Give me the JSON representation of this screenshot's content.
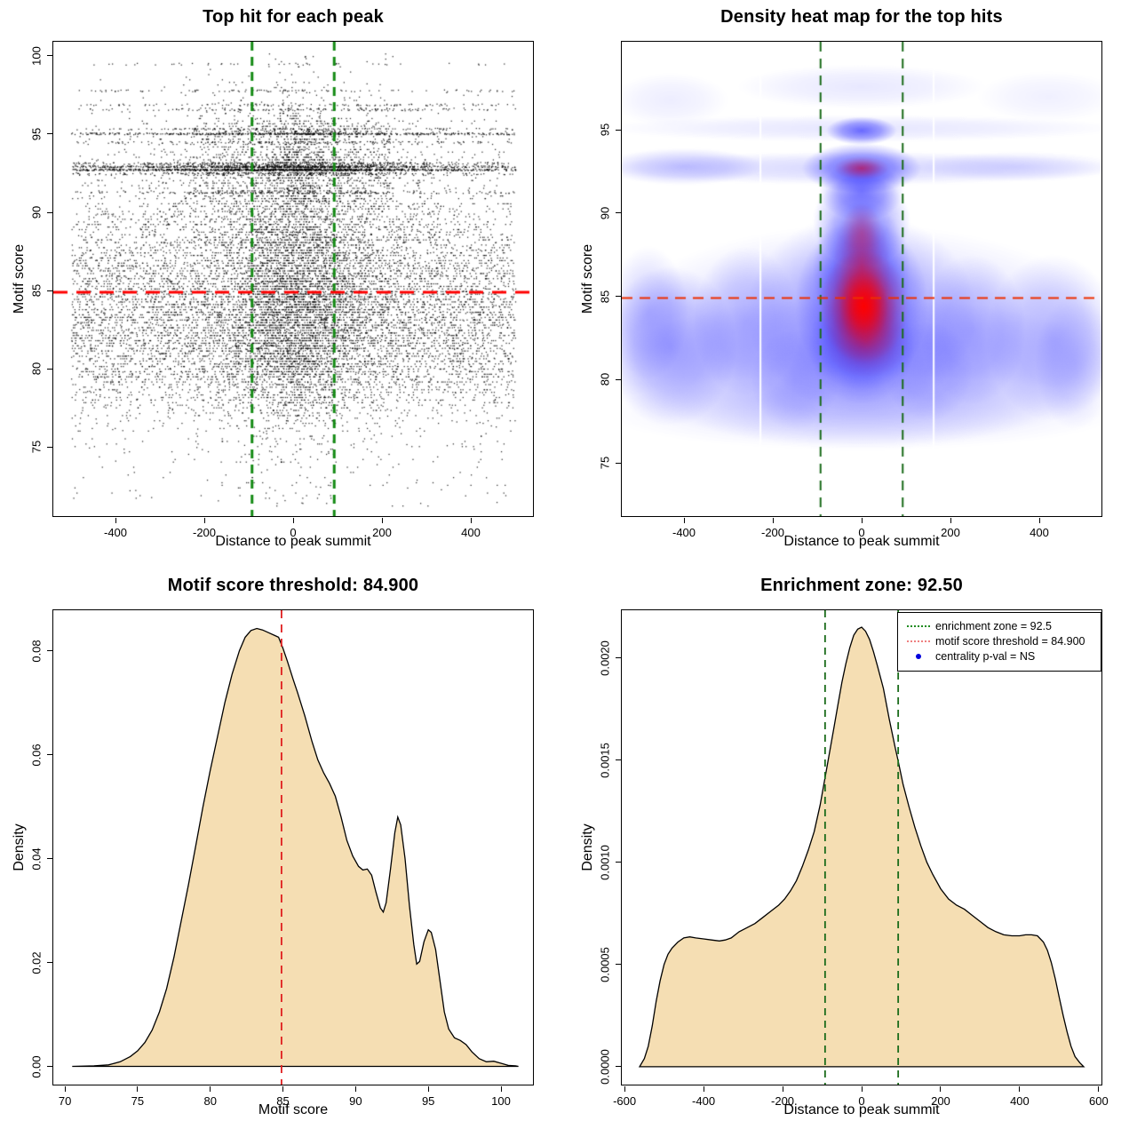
{
  "figure_background": "#ffffff",
  "chart_data": [
    {
      "type": "scatter",
      "title": "Top hit for each peak",
      "xlabel": "Distance to peak summit",
      "ylabel": "Motif score",
      "xlim": [
        -540,
        540
      ],
      "ylim": [
        70.6,
        100.9
      ],
      "x_tick_values": [
        -400,
        -200,
        0,
        200,
        400
      ],
      "x_tick_labels": [
        "-400",
        "-200",
        "0",
        "200",
        "400"
      ],
      "y_tick_values": [
        75,
        80,
        85,
        90,
        95,
        100
      ],
      "y_tick_labels": [
        "75",
        "80",
        "85",
        "90",
        "95",
        "100"
      ],
      "point_color": "#000000",
      "threshold_line": {
        "y": 84.9,
        "color": "#ff0000",
        "width": 3,
        "dash": [
          16,
          10
        ]
      },
      "zone_lines": {
        "x": [
          -92.5,
          92.5
        ],
        "color": "#148a14",
        "width": 3,
        "dash": [
          10,
          7
        ]
      },
      "points": {
        "n": 15000,
        "seed": 20240613,
        "x_data_range": [
          -500,
          500
        ],
        "outlier_frac": 0.012,
        "quantize_step": 0.165,
        "quantize_frac": 0.8,
        "funnel": {
          "y_above": 90.6,
          "shrink": 0.45,
          "frac": 0.55,
          "y_mid": 88,
          "shrink_mid": 0.7,
          "frac_mid": 0.3
        },
        "bands": [
          {
            "y": 92.75,
            "n": 1000
          },
          {
            "y": 92.95,
            "n": 700
          },
          {
            "y": 95.05,
            "n": 500
          },
          {
            "y": 93.15,
            "n": 260
          },
          {
            "y": 92.5,
            "n": 220
          },
          {
            "y": 94.5,
            "n": 150
          },
          {
            "y": 95.35,
            "n": 120
          },
          {
            "y": 96.6,
            "n": 130
          },
          {
            "y": 96.9,
            "n": 110
          },
          {
            "y": 97.8,
            "n": 90
          },
          {
            "y": 91.3,
            "n": 180
          },
          {
            "y": 99.5,
            "n": 40
          }
        ]
      }
    },
    {
      "type": "heatmap",
      "title": "Density heat map for the top hits",
      "xlabel": "Distance to peak summit",
      "ylabel": "Motif score",
      "xlim": [
        -540,
        540
      ],
      "ylim": [
        71.8,
        100.3
      ],
      "x_tick_values": [
        -400,
        -200,
        0,
        200,
        400
      ],
      "x_tick_labels": [
        "-400",
        "-200",
        "0",
        "200",
        "400"
      ],
      "y_tick_values": [
        75,
        80,
        85,
        90,
        95
      ],
      "y_tick_labels": [
        "75",
        "80",
        "85",
        "90",
        "95"
      ],
      "colormap": [
        "#ffffff",
        "#0000ff",
        "#ff0000"
      ],
      "hotspot": {
        "x": 0,
        "y": 84.5
      },
      "threshold_line": {
        "y": 84.9,
        "color": "#ee2f00",
        "width": 2,
        "dash": [
          12,
          8
        ]
      },
      "zone_lines": {
        "x": [
          -92.5,
          92.5
        ],
        "color": "#1a6b1a",
        "width": 2,
        "dash": [
          11,
          8
        ]
      },
      "artifact_lines_x": [
        -228,
        162
      ],
      "blue_blobs": [
        [
          0,
          82.5,
          580,
          6.8,
          0.2
        ],
        [
          0,
          80.5,
          580,
          4.5,
          0.18
        ],
        [
          -430,
          82,
          150,
          4.8,
          0.3
        ],
        [
          -480,
          84,
          90,
          4,
          0.18
        ],
        [
          430,
          82.5,
          150,
          5,
          0.24
        ],
        [
          480,
          81,
          90,
          4,
          0.15
        ],
        [
          -260,
          83.5,
          120,
          4.5,
          0.22
        ],
        [
          250,
          83,
          120,
          4.5,
          0.22
        ],
        [
          0,
          84,
          260,
          6,
          0.3
        ],
        [
          0,
          84.5,
          150,
          5.2,
          0.42
        ],
        [
          0,
          86.5,
          110,
          4.2,
          0.35
        ],
        [
          0,
          89.5,
          110,
          2.8,
          0.4
        ],
        [
          0,
          91.3,
          95,
          1.8,
          0.42
        ],
        [
          0,
          92.7,
          580,
          1.0,
          0.16
        ],
        [
          -400,
          92.8,
          180,
          1.1,
          0.22
        ],
        [
          350,
          92.8,
          230,
          0.9,
          0.12
        ],
        [
          0,
          92.7,
          135,
          1.5,
          0.55
        ],
        [
          0,
          94.95,
          80,
          0.85,
          0.55
        ],
        [
          0,
          95.1,
          580,
          0.8,
          0.1
        ],
        [
          0,
          97.6,
          280,
          1.3,
          0.09
        ],
        [
          -430,
          96.8,
          130,
          1.6,
          0.07
        ],
        [
          420,
          97,
          160,
          1.5,
          0.06
        ],
        [
          0,
          78,
          580,
          2.2,
          0.1
        ],
        [
          -150,
          80,
          100,
          3,
          0.15
        ],
        [
          150,
          80.5,
          100,
          3,
          0.15
        ],
        [
          0,
          82,
          120,
          3.5,
          0.3
        ]
      ],
      "red_blobs": [
        [
          5,
          84.4,
          100,
          3.4,
          0.9
        ],
        [
          5,
          84.4,
          55,
          2.2,
          0.85
        ],
        [
          0,
          86.8,
          65,
          3.8,
          0.4
        ],
        [
          10,
          82.3,
          95,
          2.2,
          0.35
        ],
        [
          0,
          88.8,
          45,
          1.8,
          0.22
        ],
        [
          0,
          92.7,
          62,
          0.72,
          0.5
        ]
      ]
    },
    {
      "type": "area",
      "title": "Motif score threshold: 84.900",
      "xlabel": "Motif score",
      "ylabel": "Density",
      "xlim": [
        69.2,
        102.2
      ],
      "ylim": [
        -0.0035,
        0.0878
      ],
      "x_tick_values": [
        70,
        75,
        80,
        85,
        90,
        95,
        100
      ],
      "x_tick_labels": [
        "70",
        "75",
        "80",
        "85",
        "90",
        "95",
        "100"
      ],
      "y_tick_values": [
        0,
        0.02,
        0.04,
        0.06,
        0.08
      ],
      "y_tick_labels": [
        "0.00",
        "0.02",
        "0.04",
        "0.06",
        "0.08"
      ],
      "fill": "#f5deb3",
      "stroke": "#000000",
      "threshold_line": {
        "x": 84.9,
        "color": "#e02020",
        "width": 2,
        "dash": [
          9,
          7
        ]
      },
      "curve": [
        [
          70.5,
          0
        ],
        [
          72,
          0.0001
        ],
        [
          73,
          0.0003
        ],
        [
          73.8,
          0.0009
        ],
        [
          74.5,
          0.0019
        ],
        [
          75,
          0.003
        ],
        [
          75.5,
          0.0046
        ],
        [
          76,
          0.007
        ],
        [
          76.5,
          0.0105
        ],
        [
          77,
          0.015
        ],
        [
          77.5,
          0.021
        ],
        [
          78,
          0.028
        ],
        [
          78.5,
          0.035
        ],
        [
          79,
          0.0425
        ],
        [
          79.5,
          0.05
        ],
        [
          80,
          0.057
        ],
        [
          80.5,
          0.0635
        ],
        [
          81,
          0.07
        ],
        [
          81.5,
          0.0755
        ],
        [
          82,
          0.08
        ],
        [
          82.4,
          0.0826
        ],
        [
          82.8,
          0.0839
        ],
        [
          83.2,
          0.0843
        ],
        [
          83.6,
          0.084
        ],
        [
          84,
          0.0835
        ],
        [
          84.4,
          0.083
        ],
        [
          84.7,
          0.0826
        ],
        [
          85,
          0.0805
        ],
        [
          85.3,
          0.078
        ],
        [
          85.7,
          0.0745
        ],
        [
          86,
          0.072
        ],
        [
          86.5,
          0.0675
        ],
        [
          87,
          0.0625
        ],
        [
          87.4,
          0.059
        ],
        [
          87.8,
          0.0565
        ],
        [
          88.2,
          0.0545
        ],
        [
          88.6,
          0.052
        ],
        [
          89,
          0.048
        ],
        [
          89.4,
          0.0435
        ],
        [
          89.8,
          0.0405
        ],
        [
          90.2,
          0.0385
        ],
        [
          90.5,
          0.0378
        ],
        [
          90.8,
          0.038
        ],
        [
          91.1,
          0.0368
        ],
        [
          91.4,
          0.0335
        ],
        [
          91.7,
          0.0305
        ],
        [
          91.9,
          0.0297
        ],
        [
          92.1,
          0.0315
        ],
        [
          92.4,
          0.038
        ],
        [
          92.7,
          0.045
        ],
        [
          92.9,
          0.048
        ],
        [
          93.1,
          0.0465
        ],
        [
          93.4,
          0.04
        ],
        [
          93.7,
          0.031
        ],
        [
          94,
          0.0235
        ],
        [
          94.2,
          0.0197
        ],
        [
          94.4,
          0.0202
        ],
        [
          94.7,
          0.024
        ],
        [
          95,
          0.0263
        ],
        [
          95.2,
          0.0258
        ],
        [
          95.5,
          0.0225
        ],
        [
          95.8,
          0.0165
        ],
        [
          96.1,
          0.0105
        ],
        [
          96.4,
          0.0072
        ],
        [
          96.8,
          0.0055
        ],
        [
          97.2,
          0.005
        ],
        [
          97.6,
          0.0042
        ],
        [
          98,
          0.0028
        ],
        [
          98.5,
          0.0015
        ],
        [
          99,
          0.0009
        ],
        [
          99.5,
          0.001
        ],
        [
          100,
          0.0006
        ],
        [
          100.5,
          0.0002
        ],
        [
          101,
          0.0001
        ],
        [
          101.2,
          0
        ]
      ]
    },
    {
      "type": "area",
      "title": "Enrichment zone: 92.50",
      "xlabel": "Distance to peak summit",
      "ylabel": "Density",
      "xlim": [
        -607,
        607
      ],
      "ylim": [
        -8.75e-05,
        0.0022325
      ],
      "x_tick_values": [
        -600,
        -400,
        -200,
        0,
        200,
        400,
        600
      ],
      "x_tick_labels": [
        "-600",
        "-400",
        "-200",
        "0",
        "200",
        "400",
        "600"
      ],
      "y_tick_values": [
        0,
        0.0005,
        0.001,
        0.0015,
        0.002
      ],
      "y_tick_labels": [
        "0.0000",
        "0.0005",
        "0.0010",
        "0.0015",
        "0.0020"
      ],
      "fill": "#f5deb3",
      "stroke": "#000000",
      "zone_lines": {
        "x": [
          -92.5,
          92.5
        ],
        "color": "#1a6b1a",
        "width": 2,
        "dash": [
          8,
          6
        ]
      },
      "legend": {
        "items": [
          {
            "label": "enrichment zone = 92.5",
            "sample": "dotted-line",
            "color": "#1f8b1f"
          },
          {
            "label": "motif score threshold = 84.900",
            "sample": "dotted-line",
            "color": "#ef8080"
          },
          {
            "label": "centrality p-val = NS",
            "sample": "point",
            "color": "#0000dd"
          }
        ]
      },
      "curve": [
        [
          -562,
          0
        ],
        [
          -550,
          4e-05
        ],
        [
          -540,
          0.0001
        ],
        [
          -530,
          0.0002
        ],
        [
          -520,
          0.00032
        ],
        [
          -510,
          0.00042
        ],
        [
          -500,
          0.0005
        ],
        [
          -490,
          0.00055
        ],
        [
          -480,
          0.00058
        ],
        [
          -465,
          0.00061
        ],
        [
          -450,
          0.00063
        ],
        [
          -435,
          0.000635
        ],
        [
          -420,
          0.00063
        ],
        [
          -400,
          0.000625
        ],
        [
          -380,
          0.00062
        ],
        [
          -360,
          0.000615
        ],
        [
          -345,
          0.00062
        ],
        [
          -330,
          0.00063
        ],
        [
          -310,
          0.00066
        ],
        [
          -290,
          0.00068
        ],
        [
          -270,
          0.0007
        ],
        [
          -250,
          0.00073
        ],
        [
          -230,
          0.00076
        ],
        [
          -210,
          0.00079
        ],
        [
          -195,
          0.00082
        ],
        [
          -180,
          0.00086
        ],
        [
          -165,
          0.00091
        ],
        [
          -150,
          0.00098
        ],
        [
          -135,
          0.00106
        ],
        [
          -120,
          0.00115
        ],
        [
          -105,
          0.00128
        ],
        [
          -92,
          0.00142
        ],
        [
          -80,
          0.00155
        ],
        [
          -70,
          0.00166
        ],
        [
          -60,
          0.00177
        ],
        [
          -50,
          0.00188
        ],
        [
          -40,
          0.00197
        ],
        [
          -30,
          0.00205
        ],
        [
          -20,
          0.00211
        ],
        [
          -10,
          0.00214
        ],
        [
          0,
          0.00215
        ],
        [
          10,
          0.00213
        ],
        [
          20,
          0.00209
        ],
        [
          30,
          0.00203
        ],
        [
          40,
          0.00196
        ],
        [
          55,
          0.00185
        ],
        [
          70,
          0.0017
        ],
        [
          85,
          0.00156
        ],
        [
          92,
          0.0015
        ],
        [
          105,
          0.00138
        ],
        [
          120,
          0.00127
        ],
        [
          135,
          0.00117
        ],
        [
          150,
          0.00108
        ],
        [
          165,
          0.001
        ],
        [
          180,
          0.00094
        ],
        [
          200,
          0.00087
        ],
        [
          220,
          0.00082
        ],
        [
          240,
          0.00079
        ],
        [
          260,
          0.00077
        ],
        [
          280,
          0.00074
        ],
        [
          300,
          0.00071
        ],
        [
          320,
          0.00068
        ],
        [
          340,
          0.00066
        ],
        [
          360,
          0.000645
        ],
        [
          380,
          0.00064
        ],
        [
          400,
          0.00064
        ],
        [
          415,
          0.000645
        ],
        [
          430,
          0.000645
        ],
        [
          445,
          0.00064
        ],
        [
          460,
          0.00061
        ],
        [
          470,
          0.00057
        ],
        [
          480,
          0.00051
        ],
        [
          490,
          0.00043
        ],
        [
          500,
          0.00034
        ],
        [
          510,
          0.00025
        ],
        [
          520,
          0.00017
        ],
        [
          530,
          0.0001
        ],
        [
          540,
          5e-05
        ],
        [
          552,
          2e-05
        ],
        [
          562,
          0
        ]
      ]
    }
  ]
}
